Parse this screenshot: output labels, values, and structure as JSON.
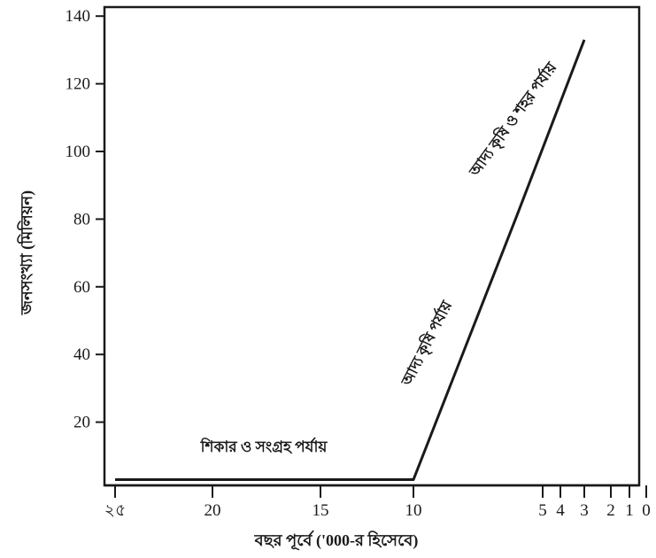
{
  "chart_data": {
    "type": "line",
    "title": "",
    "xlabel": "বছর পূর্বে ('000-র হিসেবে)",
    "ylabel": "জনসংখ্যা (মিলিয়ন)",
    "x_reversed": true,
    "ylim": [
      0,
      140
    ],
    "y_ticks": [
      20,
      40,
      60,
      80,
      100,
      120,
      140
    ],
    "y_tick_labels": [
      "20",
      "40",
      "60",
      "80",
      "100",
      "120",
      "140"
    ],
    "x_tick_labels": [
      {
        "value": 25,
        "label": "২৫"
      },
      {
        "value": 20,
        "label": "20"
      },
      {
        "value": 15,
        "label": "15"
      },
      {
        "value": 10,
        "label": "10"
      },
      {
        "value": 5,
        "label": "5"
      },
      {
        "value": 4,
        "label": "4"
      },
      {
        "value": 3,
        "label": "3"
      },
      {
        "value": 2,
        "label": "2"
      },
      {
        "value": 1,
        "label": "1"
      },
      {
        "value": 0,
        "label": "0"
      }
    ],
    "series": [
      {
        "x": [
          25,
          10,
          6,
          3
        ],
        "y": [
          3,
          3,
          81,
          133
        ]
      }
    ],
    "annotations": [
      {
        "text": "শিকার ও সংগ্রহ পর্যায়"
      },
      {
        "text": "আদ্য কৃষি পর্যায়"
      },
      {
        "text": "আদ্য কৃষি ও শহর পর্যায়"
      }
    ]
  }
}
